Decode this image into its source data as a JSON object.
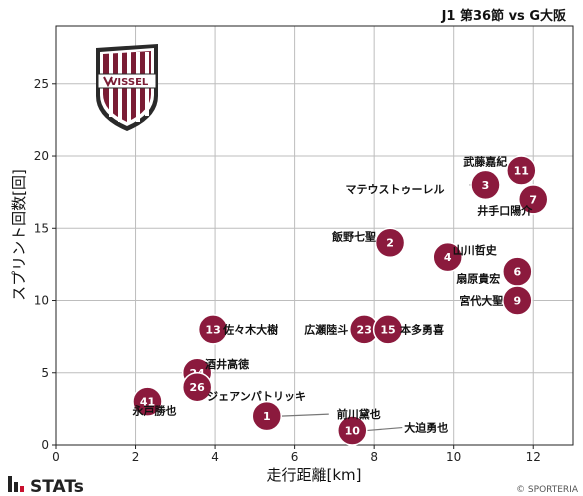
{
  "header": {
    "title": "J1 第36節 vs G大阪"
  },
  "logo": {
    "text": "VISSEL"
  },
  "footer": {
    "brand": "STATs",
    "copyright": "© SPORTERIA"
  },
  "colors": {
    "marker": "#8b1a3d",
    "marker_edge": "#ffffff",
    "grid": "#bdbdbd",
    "frame": "#222222",
    "leader": "#777777"
  },
  "chart_data": {
    "type": "scatter",
    "title": "",
    "xlabel": "走行距離[km]",
    "ylabel": "スプリント回数[回]",
    "xlim": [
      0,
      13
    ],
    "ylim": [
      0,
      29
    ],
    "xticks": [
      0,
      2,
      4,
      6,
      8,
      10,
      12
    ],
    "yticks": [
      0,
      5,
      10,
      15,
      20,
      25
    ],
    "grid": true,
    "points": [
      {
        "number": "11",
        "name": "武藤嘉紀",
        "x": 11.7,
        "y": 19
      },
      {
        "number": "3",
        "name": "マテウストゥーレル",
        "x": 10.8,
        "y": 18
      },
      {
        "number": "7",
        "name": "井手口陽介",
        "x": 12.0,
        "y": 17
      },
      {
        "number": "2",
        "name": "飯野七聖",
        "x": 8.4,
        "y": 14
      },
      {
        "number": "4",
        "name": "山川哲史",
        "x": 9.85,
        "y": 13
      },
      {
        "number": "6",
        "name": "扇原貴宏",
        "x": 11.6,
        "y": 12
      },
      {
        "number": "9",
        "name": "宮代大聖",
        "x": 11.6,
        "y": 10
      },
      {
        "number": "13",
        "name": "佐々木大樹",
        "x": 3.95,
        "y": 8
      },
      {
        "number": "23",
        "name": "広瀬陸斗",
        "x": 7.75,
        "y": 8
      },
      {
        "number": "15",
        "name": "本多勇喜",
        "x": 8.35,
        "y": 8
      },
      {
        "number": "24",
        "name": "酒井高徳",
        "x": 3.55,
        "y": 5
      },
      {
        "number": "26",
        "name": "ジェアンパトリッキ",
        "x": 3.55,
        "y": 4
      },
      {
        "number": "41",
        "name": "永戸勝也",
        "x": 2.3,
        "y": 3
      },
      {
        "number": "1",
        "name": "前川黛也",
        "x": 5.3,
        "y": 2
      },
      {
        "number": "10",
        "name": "大迫勇也",
        "x": 7.45,
        "y": 1
      }
    ]
  }
}
